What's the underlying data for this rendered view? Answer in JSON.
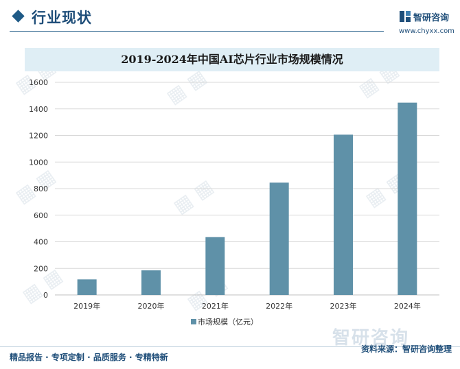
{
  "header": {
    "title": "行业现状",
    "logo_name": "智研咨询",
    "logo_url": "www.chyxx.com"
  },
  "chart_data": {
    "type": "bar",
    "title": "2019-2024年中国AI芯片行业市场规模情况",
    "categories": [
      "2019年",
      "2020年",
      "2021年",
      "2022年",
      "2023年",
      "2024年"
    ],
    "series": [
      {
        "name": "市场规模（亿元）",
        "values": [
          117,
          185,
          435,
          845,
          1206,
          1447
        ]
      }
    ],
    "ylim": [
      0,
      1600
    ],
    "yticks": [
      0,
      200,
      400,
      600,
      800,
      1000,
      1200,
      1400,
      1600
    ],
    "grid": true,
    "legend": "bottom",
    "colors": {
      "bar": "#5f91a8",
      "grid": "#d9d9d9",
      "axis": "#bfbfbf",
      "accent": "#1f4e79"
    }
  },
  "footer": {
    "tagline": "精品报告 · 专项定制 · 品质服务 · 专精特新",
    "source": "资料来源：智研咨询整理",
    "brand": "智研咨询"
  }
}
